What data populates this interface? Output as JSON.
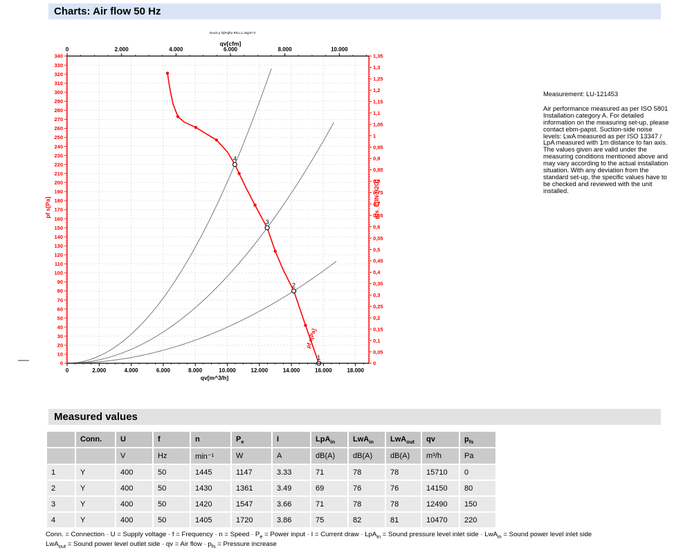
{
  "page": {
    "title": "Charts: Air flow 50 Hz",
    "section2_title": "Measured values"
  },
  "chart_data": {
    "type": "line",
    "mini_title": "Druck p fs[Pa]für Rho=1.2kg/m^3",
    "top_axis": {
      "label": "qv[cfm]",
      "min": 0,
      "max": 10000,
      "tick_step": 2000,
      "minor_step": 500,
      "m3h_per_cfm": 1.699,
      "tick_labels": [
        "0",
        "2.000",
        "4.000",
        "6.000",
        "8.000",
        "10.000"
      ]
    },
    "bottom_axis": {
      "label": "qv[m^3/h]",
      "min": 0,
      "max": 18000,
      "plot_max": 18834,
      "tick_step": 2000,
      "minor_step": 500,
      "tick_labels": [
        "0",
        "2.000",
        "4.000",
        "6.000",
        "8.000",
        "10.000",
        "12.000",
        "14.000",
        "16.000",
        "18.000"
      ]
    },
    "left_axis": {
      "label": "pf s[Pa]",
      "min": 0,
      "max": 340,
      "tick_step": 10,
      "minor_step": 2
    },
    "right_axis": {
      "label": "pfs_E[IN H2O]",
      "min": 0,
      "max": 1.35,
      "tick_step": 0.05,
      "minor_step": 0.01,
      "tick_labels": [
        "0",
        "0,05",
        "0,1",
        "0,15",
        "0,2",
        "0,25",
        "0,3",
        "0,35",
        "0,4",
        "0,45",
        "0,5",
        "0,55",
        "0,6",
        "0,65",
        "0,7",
        "0,75",
        "0,8",
        "0,85",
        "0,9",
        "0,95",
        "1",
        "1,05",
        "1,1",
        "1,15",
        "1,2",
        "1,25",
        "1,3",
        "1,35"
      ]
    },
    "curve_inline_label": "pf s[Pa]",
    "fan_curve": {
      "points": [
        [
          6264,
          321
        ],
        [
          6394,
          306
        ],
        [
          6610,
          287
        ],
        [
          6912,
          273
        ],
        [
          7300,
          267
        ],
        [
          8034,
          261
        ],
        [
          9330,
          247
        ],
        [
          10000,
          234
        ],
        [
          10470,
          220
        ],
        [
          10740,
          210
        ],
        [
          11200,
          193
        ],
        [
          11730,
          175
        ],
        [
          12490,
          150
        ],
        [
          12990,
          124
        ],
        [
          13500,
          103
        ],
        [
          14150,
          80
        ],
        [
          14880,
          42
        ],
        [
          15710,
          0
        ]
      ],
      "marker_points": [
        [
          6264,
          321
        ],
        [
          6912,
          273
        ],
        [
          8034,
          261
        ],
        [
          9330,
          247
        ],
        [
          10740,
          210
        ],
        [
          11730,
          175
        ],
        [
          12990,
          124
        ],
        [
          14880,
          42
        ]
      ]
    },
    "operating_points": [
      {
        "n": "1",
        "qv": 15710,
        "pfs": 0
      },
      {
        "n": "2",
        "qv": 14150,
        "pfs": 80
      },
      {
        "n": "3",
        "qv": 12490,
        "pfs": 150
      },
      {
        "n": "4",
        "qv": 10470,
        "pfs": 220
      }
    ],
    "system_curves": [
      {
        "qv": 10470,
        "pfs": 220,
        "qmax": 12760
      },
      {
        "qv": 12490,
        "pfs": 150,
        "qmax": 16710
      },
      {
        "qv": 14150,
        "pfs": 80,
        "qmax": 16930
      }
    ],
    "colors": {
      "curve": "#ff0000",
      "axis_red": "#ff0000",
      "axis_black": "#000000",
      "system": "#7a7a7a",
      "grid": "#c2c2c2"
    },
    "grid": {
      "horizontal_step_pa": 10,
      "vertical_step_m3h": 2000,
      "style": "dotted"
    },
    "legend_position": "none"
  },
  "measurement": {
    "label": "Measurement: LU-121453",
    "note": "Air performance measured as per ISO 5801 Installation category A. For detailed information on the measuring set-up, please contact ebm-papst. Suction-side noise levels: LwA measured as per ISO 13347 / LpA measured with 1m distance to fan axis. The values given are valid under the measuring conditions mentioned above and may vary according to the actual installation situation. With any deviation from the standard set-up, the specific values have to be checked and reviewed with the unit installed."
  },
  "table": {
    "headers": [
      {
        "t": ""
      },
      {
        "t": "Conn."
      },
      {
        "t": "U"
      },
      {
        "t": "f"
      },
      {
        "t": "n"
      },
      {
        "t": "P",
        "s": "e"
      },
      {
        "t": "I"
      },
      {
        "t": "LpA",
        "s": "in"
      },
      {
        "t": "LwA",
        "s": "in"
      },
      {
        "t": "LwA",
        "s": "out"
      },
      {
        "t": "qv"
      },
      {
        "t": "p",
        "s": "fs"
      }
    ],
    "units": [
      "",
      "",
      "V",
      "Hz",
      "min⁻¹",
      "W",
      "A",
      "dB(A)",
      "dB(A)",
      "dB(A)",
      "m³/h",
      "Pa"
    ],
    "rows": [
      [
        "1",
        "Y",
        "400",
        "50",
        "1445",
        "1147",
        "3.33",
        "71",
        "78",
        "78",
        "15710",
        "0"
      ],
      [
        "2",
        "Y",
        "400",
        "50",
        "1430",
        "1361",
        "3.49",
        "69",
        "76",
        "76",
        "14150",
        "80"
      ],
      [
        "3",
        "Y",
        "400",
        "50",
        "1420",
        "1547",
        "3.66",
        "71",
        "78",
        "78",
        "12490",
        "150"
      ],
      [
        "4",
        "Y",
        "400",
        "50",
        "1405",
        "1720",
        "3.86",
        "75",
        "82",
        "81",
        "10470",
        "220"
      ]
    ]
  },
  "footnote": {
    "line1": [
      {
        "t": "Conn. = Connection · U = Supply voltage · f = Frequency · n = Speed · P"
      },
      {
        "s": "e"
      },
      {
        "t": " = Power input · I = Current draw · LpA"
      },
      {
        "s": "in"
      },
      {
        "t": " = Sound pressure level inlet side · LwA"
      },
      {
        "s": "in"
      },
      {
        "t": " = Sound power level inlet side"
      }
    ],
    "line2": [
      {
        "t": "LwA"
      },
      {
        "s": "out"
      },
      {
        "t": " = Sound power level outlet side · qv = Air flow · p"
      },
      {
        "s": "fs"
      },
      {
        "t": " = Pressure increase"
      }
    ]
  }
}
